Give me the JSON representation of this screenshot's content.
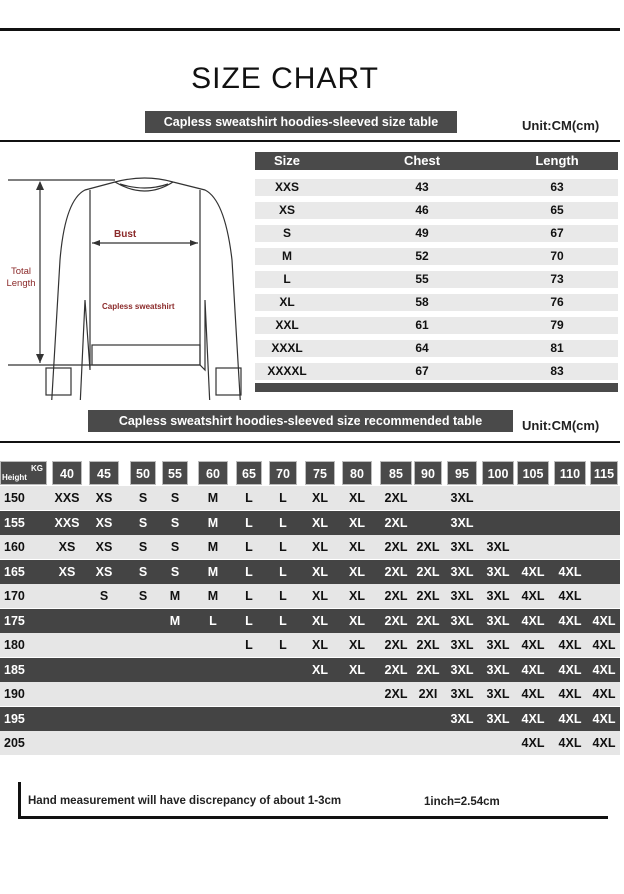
{
  "title": "SIZE CHART",
  "size_table": {
    "banner": "Capless sweatshirt hoodies-sleeved size  table",
    "unit": "Unit:CM(cm)",
    "headers": [
      "Size",
      "Chest",
      "Length"
    ],
    "rows": [
      [
        "XXS",
        "43",
        "63"
      ],
      [
        "XS",
        "46",
        "65"
      ],
      [
        "S",
        "49",
        "67"
      ],
      [
        "M",
        "52",
        "70"
      ],
      [
        "L",
        "55",
        "73"
      ],
      [
        "XL",
        "58",
        "76"
      ],
      [
        "XXL",
        "61",
        "79"
      ],
      [
        "XXXL",
        "64",
        "81"
      ],
      [
        "XXXXL",
        "67",
        "83"
      ]
    ]
  },
  "diagram": {
    "bust": "Bust",
    "total_length": "Total Length",
    "garment": "Capless sweatshirt"
  },
  "recommend_table": {
    "banner": "Capless sweatshirt hoodies-sleeved size recommended table",
    "unit": "Unit:CM(cm)",
    "corner_top": "KG",
    "corner_bottom": "Height",
    "weights": [
      "40",
      "45",
      "50",
      "55",
      "60",
      "65",
      "70",
      "75",
      "80",
      "85",
      "90",
      "95",
      "100",
      "105",
      "110",
      "115"
    ],
    "rows": [
      {
        "height": "150",
        "sizes": [
          "XXS",
          "XS",
          "S",
          "S",
          "M",
          "L",
          "L",
          "XL",
          "XL",
          "2XL",
          "",
          "3XL",
          "",
          "",
          "",
          ""
        ]
      },
      {
        "height": "155",
        "sizes": [
          "XXS",
          "XS",
          "S",
          "S",
          "M",
          "L",
          "L",
          "XL",
          "XL",
          "2XL",
          "",
          "3XL",
          "",
          "",
          "",
          ""
        ]
      },
      {
        "height": "160",
        "sizes": [
          "XS",
          "XS",
          "S",
          "S",
          "M",
          "L",
          "L",
          "XL",
          "XL",
          "2XL",
          "2XL",
          "3XL",
          "3XL",
          "",
          "",
          ""
        ]
      },
      {
        "height": "165",
        "sizes": [
          "XS",
          "XS",
          "S",
          "S",
          "M",
          "L",
          "L",
          "XL",
          "XL",
          "2XL",
          "2XL",
          "3XL",
          "3XL",
          "4XL",
          "4XL",
          ""
        ]
      },
      {
        "height": "170",
        "sizes": [
          "",
          "S",
          "S",
          "M",
          "M",
          "L",
          "L",
          "XL",
          "XL",
          "2XL",
          "2XL",
          "3XL",
          "3XL",
          "4XL",
          "4XL",
          ""
        ]
      },
      {
        "height": "175",
        "sizes": [
          "",
          "",
          "",
          "M",
          "L",
          "L",
          "L",
          "XL",
          "XL",
          "2XL",
          "2XL",
          "3XL",
          "3XL",
          "4XL",
          "4XL",
          "4XL"
        ]
      },
      {
        "height": "180",
        "sizes": [
          "",
          "",
          "",
          "",
          "",
          "L",
          "L",
          "XL",
          "XL",
          "2XL",
          "2XL",
          "3XL",
          "3XL",
          "4XL",
          "4XL",
          "4XL"
        ]
      },
      {
        "height": "185",
        "sizes": [
          "",
          "",
          "",
          "",
          "",
          "",
          "",
          "XL",
          "XL",
          "2XL",
          "2XL",
          "3XL",
          "3XL",
          "4XL",
          "4XL",
          "4XL"
        ]
      },
      {
        "height": "190",
        "sizes": [
          "",
          "",
          "",
          "",
          "",
          "",
          "",
          "",
          "",
          "2XL",
          "2XI",
          "3XL",
          "3XL",
          "4XL",
          "4XL",
          "4XL"
        ]
      },
      {
        "height": "195",
        "sizes": [
          "",
          "",
          "",
          "",
          "",
          "",
          "",
          "",
          "",
          "",
          "",
          "3XL",
          "3XL",
          "4XL",
          "4XL",
          "4XL"
        ]
      },
      {
        "height": "205",
        "sizes": [
          "",
          "",
          "",
          "",
          "",
          "",
          "",
          "",
          "",
          "",
          "",
          "",
          "",
          "4XL",
          "4XL",
          "4XL"
        ]
      }
    ]
  },
  "footer": {
    "note": "Hand measurement will have discrepancy of about  1-3cm",
    "conversion": "1inch=2.54cm"
  },
  "colors": {
    "bar": "#4a4a4a",
    "row_light": "#e6e6e6",
    "row_dark": "#444444",
    "label_red": "#8b2a2a"
  }
}
